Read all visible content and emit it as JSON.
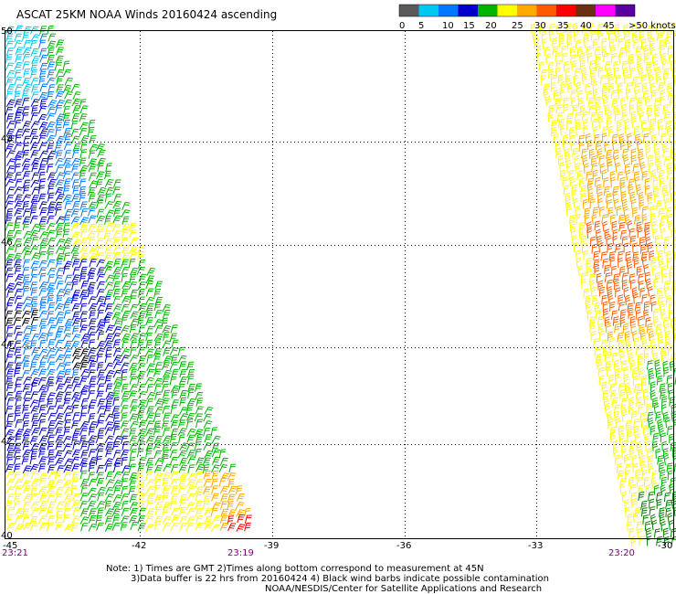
{
  "title": "ASCAT 25KM NOAA Winds 20160424 ascending",
  "legend": {
    "labels": [
      "0",
      "5",
      "10",
      "15",
      "20",
      "25",
      "30",
      "35",
      "40",
      "45",
      ">50 knots"
    ],
    "colors": [
      "#5a5a5a",
      "#00c8f0",
      "#0078ff",
      "#0000c8",
      "#00b400",
      "#ffff00",
      "#ffaa00",
      "#ff5a00",
      "#ff0000",
      "#6a3010",
      "#ff00ff",
      "#5a00a0"
    ]
  },
  "axes": {
    "lon_labels": [
      "-45",
      "-42",
      "-39",
      "-36",
      "-33",
      "-30"
    ],
    "lat_labels": [
      "50",
      "48",
      "46",
      "44",
      "42",
      "40"
    ]
  },
  "times": {
    "left": "23:21",
    "middle": "23:19",
    "right": "23:20",
    "color": "#800080"
  },
  "notes": {
    "line1": "Note: 1) Times are GMT 2)Times along bottom correspond to measurement at 45N",
    "line2": "3)Data buffer is 22 hrs from 20160424 4) Black wind barbs indicate possible contamination",
    "line3": "NOAA/NESDIS/Center for Satellite Applications and Research"
  },
  "swaths": {
    "left": {
      "description_colors": [
        "#0000c8",
        "#0078ff",
        "#00b400",
        "#ffff00",
        "#ffaa00",
        "#ff0000",
        "#000000"
      ]
    },
    "right": {
      "description_colors": [
        "#ffff00",
        "#ffaa00",
        "#ff5a00",
        "#c85000",
        "#00b400",
        "#008000"
      ]
    }
  }
}
